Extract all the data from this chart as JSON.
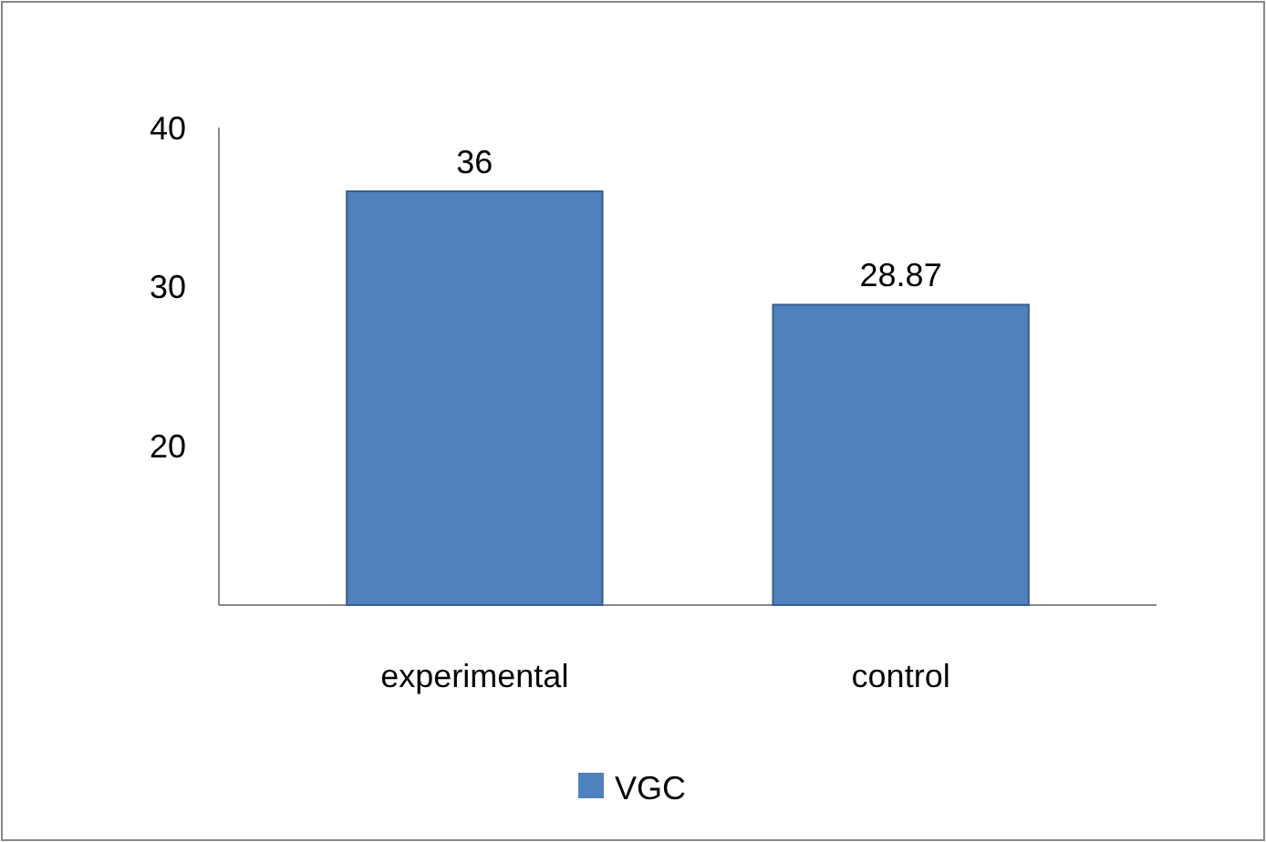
{
  "chart_data": {
    "type": "bar",
    "categories": [
      "experimental",
      "control"
    ],
    "series": [
      {
        "name": "VGC",
        "color": "#4f81bd",
        "values": [
          36,
          28.87
        ]
      }
    ],
    "ylim": [
      10,
      40
    ],
    "yticks": [
      20,
      30,
      40
    ],
    "data_labels": true,
    "legend": "bottom"
  }
}
